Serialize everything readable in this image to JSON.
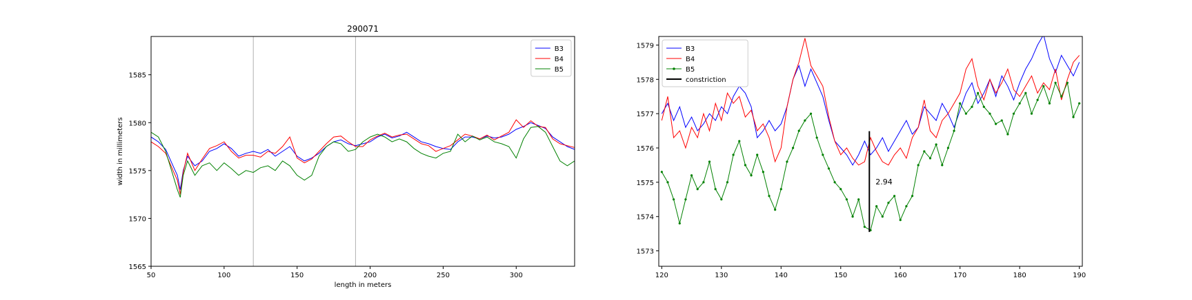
{
  "chart_data": [
    {
      "type": "line",
      "title": "290071",
      "xlabel": "length in meters",
      "ylabel": "width in millimeters",
      "xlim": [
        50,
        340
      ],
      "ylim": [
        1565,
        1589
      ],
      "xticks": [
        50,
        100,
        150,
        200,
        250,
        300
      ],
      "yticks": [
        1565,
        1570,
        1575,
        1580,
        1585
      ],
      "vlines": [
        120,
        190
      ],
      "legend_position": "top-right",
      "series": [
        {
          "name": "B3",
          "color": "#0000ff",
          "marker": "none",
          "x": [
            50,
            55,
            60,
            65,
            68,
            70,
            72,
            75,
            80,
            85,
            90,
            95,
            100,
            105,
            110,
            115,
            120,
            125,
            130,
            135,
            140,
            145,
            150,
            155,
            160,
            165,
            170,
            175,
            180,
            185,
            190,
            195,
            200,
            205,
            210,
            215,
            220,
            225,
            230,
            235,
            240,
            245,
            250,
            255,
            260,
            265,
            270,
            275,
            280,
            285,
            290,
            295,
            300,
            305,
            310,
            315,
            320,
            325,
            330,
            335,
            340
          ],
          "y": [
            1578.5,
            1578.0,
            1577.2,
            1575.5,
            1574.5,
            1573.0,
            1575.0,
            1576.5,
            1575.5,
            1576.0,
            1577.0,
            1577.3,
            1577.8,
            1577.3,
            1576.5,
            1576.8,
            1577.0,
            1576.8,
            1577.2,
            1576.5,
            1577.0,
            1577.5,
            1576.5,
            1576.0,
            1576.3,
            1576.8,
            1577.5,
            1578.0,
            1578.2,
            1577.8,
            1577.6,
            1577.8,
            1578.0,
            1578.5,
            1578.8,
            1578.4,
            1578.6,
            1579.0,
            1578.5,
            1578.0,
            1577.8,
            1577.5,
            1577.3,
            1577.2,
            1578.0,
            1578.5,
            1578.5,
            1578.3,
            1578.6,
            1578.4,
            1578.5,
            1578.8,
            1579.3,
            1579.6,
            1580.0,
            1579.7,
            1579.4,
            1578.5,
            1578.0,
            1577.5,
            1577.2
          ]
        },
        {
          "name": "B4",
          "color": "#ff0000",
          "marker": "none",
          "x": [
            50,
            55,
            60,
            65,
            68,
            70,
            72,
            75,
            80,
            85,
            90,
            95,
            100,
            105,
            110,
            115,
            120,
            125,
            130,
            135,
            140,
            145,
            150,
            155,
            160,
            165,
            170,
            175,
            180,
            185,
            190,
            195,
            200,
            205,
            210,
            215,
            220,
            225,
            230,
            235,
            240,
            245,
            250,
            255,
            260,
            265,
            270,
            275,
            280,
            285,
            290,
            295,
            300,
            305,
            310,
            315,
            320,
            325,
            330,
            335,
            340
          ],
          "y": [
            1578.0,
            1577.5,
            1576.8,
            1575.0,
            1574.0,
            1572.5,
            1574.8,
            1576.8,
            1575.0,
            1576.2,
            1577.3,
            1577.6,
            1578.0,
            1577.0,
            1576.3,
            1576.6,
            1576.6,
            1576.4,
            1577.0,
            1576.8,
            1577.5,
            1578.5,
            1576.3,
            1575.8,
            1576.2,
            1577.0,
            1577.8,
            1578.5,
            1578.6,
            1578.0,
            1577.5,
            1577.5,
            1578.2,
            1578.6,
            1578.9,
            1578.5,
            1578.7,
            1578.8,
            1578.3,
            1577.8,
            1577.6,
            1577.0,
            1577.3,
            1577.6,
            1578.2,
            1578.8,
            1578.6,
            1578.3,
            1578.7,
            1578.2,
            1578.6,
            1579.0,
            1580.3,
            1579.5,
            1580.2,
            1579.6,
            1579.5,
            1578.3,
            1577.8,
            1577.6,
            1577.4
          ]
        },
        {
          "name": "B5",
          "color": "#008000",
          "marker": "none",
          "x": [
            50,
            55,
            60,
            65,
            68,
            70,
            72,
            75,
            80,
            85,
            90,
            95,
            100,
            105,
            110,
            115,
            120,
            125,
            130,
            135,
            140,
            145,
            150,
            155,
            160,
            165,
            170,
            175,
            180,
            185,
            190,
            195,
            200,
            205,
            210,
            215,
            220,
            225,
            230,
            235,
            240,
            245,
            250,
            255,
            260,
            265,
            270,
            275,
            280,
            285,
            290,
            295,
            300,
            305,
            310,
            315,
            320,
            325,
            330,
            335,
            340
          ],
          "y": [
            1579.0,
            1578.5,
            1577.0,
            1574.5,
            1573.0,
            1572.2,
            1574.5,
            1576.0,
            1574.5,
            1575.5,
            1575.8,
            1575.0,
            1575.8,
            1575.2,
            1574.5,
            1575.0,
            1574.8,
            1575.3,
            1575.5,
            1575.0,
            1576.0,
            1575.5,
            1574.5,
            1574.0,
            1574.5,
            1576.5,
            1577.5,
            1578.0,
            1577.8,
            1577.0,
            1577.2,
            1578.0,
            1578.5,
            1578.8,
            1578.5,
            1578.0,
            1578.3,
            1578.0,
            1577.3,
            1576.8,
            1576.5,
            1576.3,
            1576.8,
            1577.0,
            1578.8,
            1578.0,
            1578.6,
            1578.2,
            1578.5,
            1578.0,
            1577.8,
            1577.5,
            1576.3,
            1578.3,
            1579.5,
            1579.6,
            1579.0,
            1577.5,
            1576.0,
            1575.5,
            1576.0
          ]
        }
      ]
    },
    {
      "type": "line",
      "title": "",
      "xlabel": "",
      "ylabel": "",
      "xlim": [
        119.5,
        190.5
      ],
      "ylim": [
        1572.55,
        1579.25
      ],
      "xticks": [
        120,
        130,
        140,
        150,
        160,
        170,
        180,
        190
      ],
      "yticks": [
        1573,
        1574,
        1575,
        1576,
        1577,
        1578,
        1579
      ],
      "legend_position": "top-left",
      "annotation": {
        "label": "constriction",
        "text": "2.94",
        "x": 154.8,
        "y0": 1573.55,
        "y1": 1576.49
      },
      "series": [
        {
          "name": "B3",
          "color": "#0000ff",
          "marker": "none",
          "x": [
            120,
            121,
            122,
            123,
            124,
            125,
            126,
            127,
            128,
            129,
            130,
            131,
            132,
            133,
            134,
            135,
            136,
            137,
            138,
            139,
            140,
            141,
            142,
            143,
            144,
            145,
            146,
            147,
            148,
            149,
            150,
            151,
            152,
            153,
            154,
            155,
            156,
            157,
            158,
            159,
            160,
            161,
            162,
            163,
            164,
            165,
            166,
            167,
            168,
            169,
            170,
            171,
            172,
            173,
            174,
            175,
            176,
            177,
            178,
            179,
            180,
            181,
            182,
            183,
            184,
            185,
            186,
            187,
            188,
            189,
            190
          ],
          "y": [
            1577.0,
            1577.3,
            1576.8,
            1577.2,
            1576.6,
            1576.9,
            1576.5,
            1576.7,
            1577.0,
            1576.8,
            1577.2,
            1577.0,
            1577.5,
            1577.8,
            1577.6,
            1577.2,
            1576.3,
            1576.5,
            1576.8,
            1576.5,
            1576.7,
            1577.2,
            1578.0,
            1578.4,
            1577.8,
            1578.3,
            1577.9,
            1577.5,
            1576.8,
            1576.2,
            1576.0,
            1575.8,
            1575.5,
            1575.8,
            1576.2,
            1575.8,
            1576.0,
            1576.3,
            1575.9,
            1576.2,
            1576.5,
            1576.8,
            1576.4,
            1576.6,
            1577.2,
            1577.0,
            1576.8,
            1577.3,
            1577.0,
            1576.6,
            1577.1,
            1577.6,
            1577.9,
            1577.3,
            1577.6,
            1578.0,
            1577.5,
            1578.1,
            1577.8,
            1577.4,
            1577.9,
            1578.3,
            1578.6,
            1579.0,
            1579.3,
            1578.6,
            1578.2,
            1578.7,
            1578.4,
            1578.1,
            1578.5
          ]
        },
        {
          "name": "B4",
          "color": "#ff0000",
          "marker": "none",
          "x": [
            120,
            121,
            122,
            123,
            124,
            125,
            126,
            127,
            128,
            129,
            130,
            131,
            132,
            133,
            134,
            135,
            136,
            137,
            138,
            139,
            140,
            141,
            142,
            143,
            144,
            145,
            146,
            147,
            148,
            149,
            150,
            151,
            152,
            153,
            154,
            155,
            156,
            157,
            158,
            159,
            160,
            161,
            162,
            163,
            164,
            165,
            166,
            167,
            168,
            169,
            170,
            171,
            172,
            173,
            174,
            175,
            176,
            177,
            178,
            179,
            180,
            181,
            182,
            183,
            184,
            185,
            186,
            187,
            188,
            189,
            190
          ],
          "y": [
            1576.8,
            1577.5,
            1576.3,
            1576.5,
            1576.0,
            1576.6,
            1576.3,
            1577.0,
            1576.5,
            1577.3,
            1576.8,
            1577.6,
            1577.3,
            1577.5,
            1576.9,
            1577.1,
            1576.5,
            1576.7,
            1576.3,
            1575.6,
            1576.0,
            1577.2,
            1578.0,
            1578.5,
            1579.2,
            1578.4,
            1578.1,
            1577.8,
            1576.9,
            1576.2,
            1575.8,
            1576.0,
            1575.7,
            1575.5,
            1575.6,
            1576.3,
            1575.9,
            1575.6,
            1575.5,
            1575.8,
            1576.0,
            1575.7,
            1576.3,
            1576.6,
            1577.4,
            1576.5,
            1576.3,
            1576.8,
            1577.0,
            1577.3,
            1577.6,
            1578.3,
            1578.6,
            1577.8,
            1577.4,
            1578.0,
            1577.6,
            1577.9,
            1578.3,
            1577.7,
            1577.5,
            1577.8,
            1578.1,
            1577.6,
            1577.9,
            1577.7,
            1578.3,
            1577.4,
            1578.0,
            1578.5,
            1578.7
          ]
        },
        {
          "name": "B5",
          "color": "#008000",
          "marker": "dot",
          "x": [
            120,
            121,
            122,
            123,
            124,
            125,
            126,
            127,
            128,
            129,
            130,
            131,
            132,
            133,
            134,
            135,
            136,
            137,
            138,
            139,
            140,
            141,
            142,
            143,
            144,
            145,
            146,
            147,
            148,
            149,
            150,
            151,
            152,
            153,
            154,
            155,
            156,
            157,
            158,
            159,
            160,
            161,
            162,
            163,
            164,
            165,
            166,
            167,
            168,
            169,
            170,
            171,
            172,
            173,
            174,
            175,
            176,
            177,
            178,
            179,
            180,
            181,
            182,
            183,
            184,
            185,
            186,
            187,
            188,
            189,
            190
          ],
          "y": [
            1575.3,
            1575.0,
            1574.5,
            1573.8,
            1574.5,
            1575.2,
            1574.8,
            1575.0,
            1575.6,
            1574.8,
            1574.5,
            1575.0,
            1575.8,
            1576.2,
            1575.5,
            1575.2,
            1575.8,
            1575.3,
            1574.6,
            1574.2,
            1574.8,
            1575.6,
            1576.0,
            1576.5,
            1576.8,
            1577.0,
            1576.3,
            1575.8,
            1575.4,
            1575.0,
            1574.8,
            1574.5,
            1574.0,
            1574.5,
            1573.7,
            1573.6,
            1574.3,
            1574.0,
            1574.4,
            1574.6,
            1573.9,
            1574.3,
            1574.6,
            1575.5,
            1575.9,
            1575.7,
            1576.1,
            1575.5,
            1576.0,
            1576.5,
            1577.3,
            1577.0,
            1577.2,
            1577.6,
            1577.2,
            1577.0,
            1576.7,
            1576.8,
            1576.4,
            1577.0,
            1577.3,
            1577.6,
            1577.0,
            1577.4,
            1577.8,
            1577.3,
            1577.9,
            1577.5,
            1577.9,
            1576.9,
            1577.3
          ]
        }
      ]
    }
  ]
}
